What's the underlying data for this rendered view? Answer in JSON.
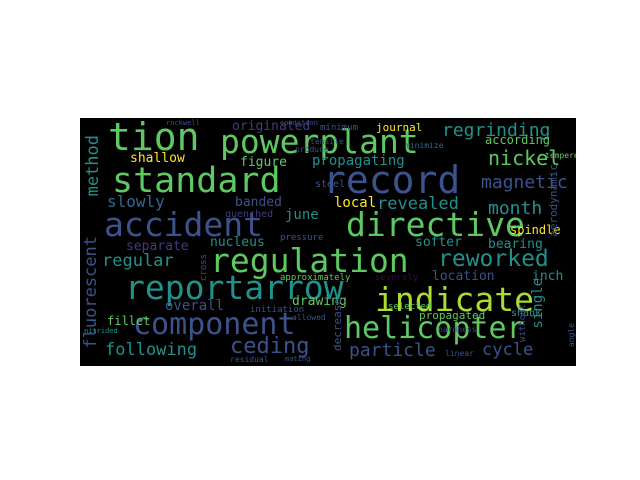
{
  "colormap": [
    "#440154",
    "#3b528b",
    "#21918c",
    "#5ec962",
    "#fde725"
  ],
  "words": [
    {
      "text": "tion",
      "color": "#5ec962"
    },
    {
      "text": "powerplant",
      "color": "#5ec962"
    },
    {
      "text": "regrinding",
      "color": "#21918c"
    },
    {
      "text": "standard",
      "color": "#5ec962"
    },
    {
      "text": "record",
      "color": "#3b528b"
    },
    {
      "text": "nickel",
      "color": "#5ec962"
    },
    {
      "text": "magnetic",
      "color": "#3b528b"
    },
    {
      "text": "accident",
      "color": "#3b528b"
    },
    {
      "text": "directive",
      "color": "#5ec962"
    },
    {
      "text": "regulation",
      "color": "#5ec962"
    },
    {
      "text": "reworked",
      "color": "#21918c"
    },
    {
      "text": "reportarrow",
      "color": "#21918c"
    },
    {
      "text": "indicate",
      "color": "#aadc32"
    },
    {
      "text": "component",
      "color": "#3b528b"
    },
    {
      "text": "helicopter",
      "color": "#5ec962"
    },
    {
      "text": "ceding",
      "color": "#3b528b"
    },
    {
      "text": "method",
      "color": "#21918c"
    },
    {
      "text": "fluorescent",
      "color": "#3b528b"
    },
    {
      "text": "shallow",
      "color": "#fde725"
    },
    {
      "text": "propagating",
      "color": "#21918c"
    },
    {
      "text": "slowly",
      "color": "#31688e"
    },
    {
      "text": "revealed",
      "color": "#21918c"
    },
    {
      "text": "month",
      "color": "#21918c"
    },
    {
      "text": "june",
      "color": "#21918c"
    },
    {
      "text": "regular",
      "color": "#21918c"
    },
    {
      "text": "following",
      "color": "#21918c"
    },
    {
      "text": "particle",
      "color": "#3b528b"
    },
    {
      "text": "cycle",
      "color": "#3b528b"
    },
    {
      "text": "originated",
      "color": "#443983"
    },
    {
      "text": "figure",
      "color": "#5ec962"
    },
    {
      "text": "banded",
      "color": "#3b528b"
    },
    {
      "text": "separate",
      "color": "#443983"
    },
    {
      "text": "nucleus",
      "color": "#21918c"
    },
    {
      "text": "overall",
      "color": "#3b528b"
    },
    {
      "text": "fillet",
      "color": "#5ec962"
    },
    {
      "text": "local",
      "color": "#fde725"
    },
    {
      "text": "drawing",
      "color": "#5ec962"
    },
    {
      "text": "softer",
      "color": "#21918c"
    },
    {
      "text": "bearing",
      "color": "#21918c"
    },
    {
      "text": "location",
      "color": "#3b528b"
    },
    {
      "text": "inch",
      "color": "#21918c"
    },
    {
      "text": "propagated",
      "color": "#5ec962"
    },
    {
      "text": "according",
      "color": "#5ec962"
    },
    {
      "text": "journal",
      "color": "#fde725"
    },
    {
      "text": "spindle",
      "color": "#fde725"
    },
    {
      "text": "single",
      "color": "#21918c"
    },
    {
      "text": "aerodynamic",
      "color": "#3b528b"
    },
    {
      "text": "shank",
      "color": "#21918c"
    },
    {
      "text": "selected",
      "color": "#5ec962"
    },
    {
      "text": "severely",
      "color": "#440154"
    },
    {
      "text": "decrease",
      "color": "#3b528b"
    },
    {
      "text": "approximately",
      "color": "#5ec962"
    },
    {
      "text": "steel",
      "color": "#3b528b"
    },
    {
      "text": "hardness",
      "color": "#3b528b"
    },
    {
      "text": "minimize",
      "color": "#31688e"
    },
    {
      "text": "minimum",
      "color": "#3b528b"
    },
    {
      "text": "tempered",
      "color": "#5ec962"
    },
    {
      "text": "quenched",
      "color": "#443983"
    },
    {
      "text": "pressure",
      "color": "#3b528b"
    },
    {
      "text": "initiation",
      "color": "#3b528b"
    },
    {
      "text": "residual",
      "color": "#3b528b"
    },
    {
      "text": "nitrided",
      "color": "#21918c"
    },
    {
      "text": "linear",
      "color": "#3b528b"
    },
    {
      "text": "tensile",
      "color": "#3b528b"
    },
    {
      "text": "produce",
      "color": "#3b528b"
    },
    {
      "text": "allowed",
      "color": "#3b528b"
    },
    {
      "text": "condition",
      "color": "#3b528b"
    },
    {
      "text": "rockwell",
      "color": "#3b528b"
    },
    {
      "text": "without",
      "color": "#3b528b"
    },
    {
      "text": "angle",
      "color": "#3b528b"
    },
    {
      "text": "cross",
      "color": "#3b528b"
    },
    {
      "text": "mating",
      "color": "#3b528b"
    }
  ]
}
